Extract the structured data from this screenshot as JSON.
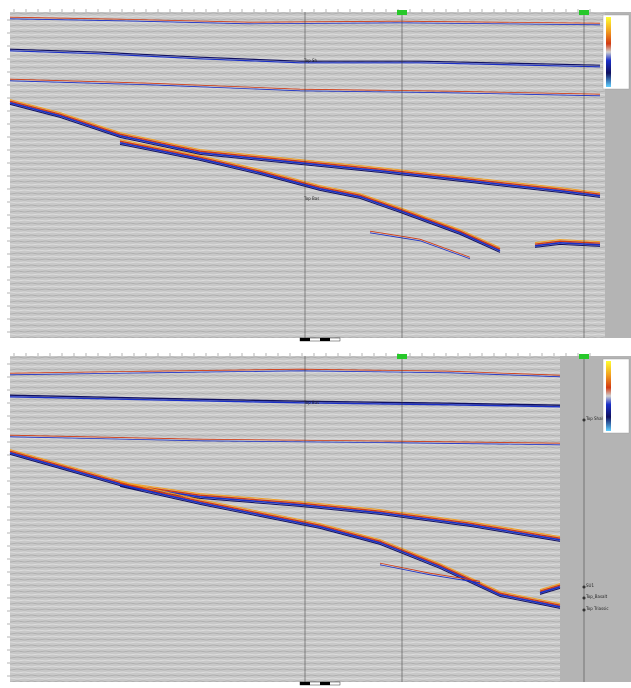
{
  "colors": {
    "background": "#c8c8c8",
    "gutter": "#b4b4b4",
    "peak_red": "#d23a12",
    "peak_orange": "#f2a020",
    "trough_blue": "#1a2fc8",
    "trough_dark": "#101060",
    "well_line": "#333333",
    "well_marker": "#27c82a"
  },
  "icons": {
    "axis_marker": "triangle-marker-icon",
    "well_head": "well-head-icon",
    "scale_bar": "scale-bar-icon"
  },
  "top_panel": {
    "well_labels": [
      "",
      ""
    ],
    "horizon_labels": [
      "Top Sh",
      "Top Bas"
    ],
    "legend_ticks": [
      "",
      "",
      "",
      "",
      "",
      "",
      ""
    ]
  },
  "bottom_panel": {
    "well_labels": [
      "",
      ""
    ],
    "horizon_labels": [
      "Top Shale",
      "Top Bas",
      "SU1",
      "Top_Basalt",
      "Top Triassic"
    ],
    "legend_ticks": [
      "",
      "",
      "",
      "",
      "",
      "",
      ""
    ]
  }
}
